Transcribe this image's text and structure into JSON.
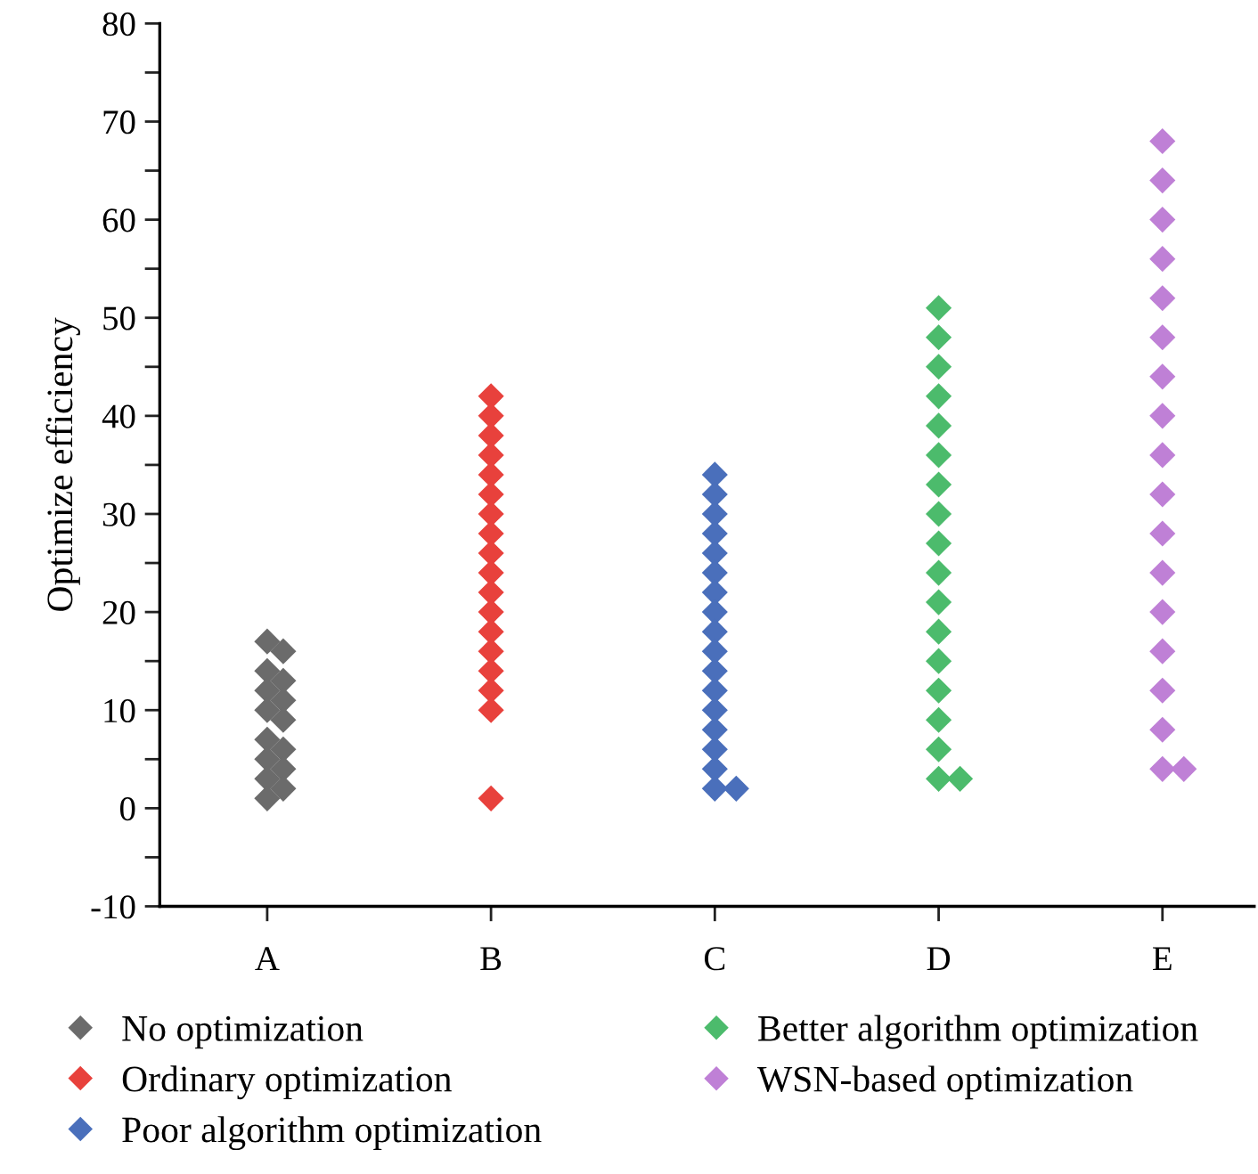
{
  "chart_data": {
    "type": "scatter",
    "ylabel": "Optimize efficiency",
    "marker": "diamond",
    "grid": false,
    "legend": "bottom",
    "categories": [
      "A",
      "B",
      "C",
      "D",
      "E"
    ],
    "ylim": [
      -10,
      80
    ],
    "yticks": [
      -10,
      {
        "value": -5,
        "label": null
      },
      0,
      {
        "value": 5,
        "label": null
      },
      10,
      {
        "value": 15,
        "label": null
      },
      20,
      {
        "value": 25,
        "label": null
      },
      30,
      {
        "value": 35,
        "label": null
      },
      40,
      {
        "value": 45,
        "label": null
      },
      50,
      {
        "value": 55,
        "label": null
      },
      60,
      {
        "value": 65,
        "label": null
      },
      70,
      {
        "value": 75,
        "label": null
      },
      80
    ],
    "series": [
      {
        "name": "No optimization",
        "color": "#6b6b6b",
        "x": [
          "A",
          "A",
          "A",
          "A",
          "A",
          "A",
          "A",
          "A",
          "A",
          "A",
          "A",
          "A",
          "A",
          "A",
          "A"
        ],
        "values": [
          17,
          16,
          14,
          13,
          12,
          11,
          10,
          9,
          7,
          6,
          5,
          4,
          3,
          2,
          1
        ]
      },
      {
        "name": "Ordinary optimization",
        "color": "#e8413c",
        "x": [
          "B",
          "B",
          "B",
          "B",
          "B",
          "B",
          "B",
          "B",
          "B",
          "B",
          "B",
          "B",
          "B",
          "B",
          "B",
          "B",
          "B",
          "B"
        ],
        "values": [
          42,
          40,
          38,
          36,
          34,
          32,
          30,
          28,
          26,
          24,
          22,
          20,
          18,
          16,
          14,
          12,
          10,
          1
        ]
      },
      {
        "name": "Poor algorithm optimization",
        "color": "#4a6fbb",
        "x": [
          "C",
          "C",
          "C",
          "C",
          "C",
          "C",
          "C",
          "C",
          "C",
          "C",
          "C",
          "C",
          "C",
          "C",
          "C",
          "C",
          "C",
          "C"
        ],
        "values": [
          34,
          32,
          30,
          28,
          26,
          24,
          22,
          20,
          18,
          16,
          14,
          12,
          10,
          8,
          6,
          4,
          2,
          2
        ]
      },
      {
        "name": "Better algorithm optimization",
        "color": "#4cbb6c",
        "x": [
          "D",
          "D",
          "D",
          "D",
          "D",
          "D",
          "D",
          "D",
          "D",
          "D",
          "D",
          "D",
          "D",
          "D",
          "D",
          "D",
          "D",
          "D"
        ],
        "values": [
          51,
          48,
          45,
          42,
          39,
          36,
          33,
          30,
          27,
          24,
          21,
          18,
          15,
          12,
          9,
          6,
          3,
          3
        ]
      },
      {
        "name": "WSN-based optimization",
        "color": "#bf80d6",
        "x": [
          "E",
          "E",
          "E",
          "E",
          "E",
          "E",
          "E",
          "E",
          "E",
          "E",
          "E",
          "E",
          "E",
          "E",
          "E",
          "E",
          "E",
          "E"
        ],
        "values": [
          68,
          64,
          60,
          56,
          52,
          48,
          44,
          40,
          36,
          32,
          28,
          24,
          20,
          16,
          12,
          8,
          4,
          4
        ]
      }
    ]
  }
}
